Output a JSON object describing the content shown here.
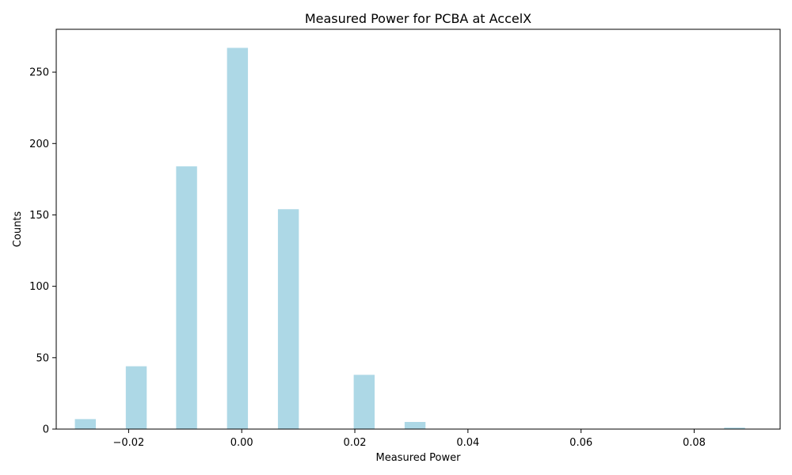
{
  "chart_data": {
    "type": "bar",
    "title": "Measured Power for PCBA at AccelX",
    "xlabel": "Measured Power",
    "ylabel": "Counts",
    "xlim": [
      -0.0328,
      0.0952
    ],
    "ylim": [
      0,
      280
    ],
    "xticks": [
      -0.02,
      0.0,
      0.02,
      0.04,
      0.06,
      0.08
    ],
    "xtick_labels": [
      "−0.02",
      "0.00",
      "0.02",
      "0.04",
      "0.06",
      "0.08"
    ],
    "yticks": [
      0,
      50,
      100,
      150,
      200,
      250
    ],
    "ytick_labels": [
      "0",
      "50",
      "100",
      "150",
      "200",
      "250"
    ],
    "grid": false,
    "bar_color": "#add8e6",
    "bins": [
      {
        "x0": -0.0295,
        "x1": -0.0258,
        "count": 7
      },
      {
        "x0": -0.0205,
        "x1": -0.0168,
        "count": 44
      },
      {
        "x0": -0.0116,
        "x1": -0.0079,
        "count": 184
      },
      {
        "x0": -0.0026,
        "x1": 0.0011,
        "count": 267
      },
      {
        "x0": 0.0064,
        "x1": 0.0101,
        "count": 154
      },
      {
        "x0": 0.0198,
        "x1": 0.0235,
        "count": 38
      },
      {
        "x0": 0.0288,
        "x1": 0.0325,
        "count": 5
      },
      {
        "x0": 0.0853,
        "x1": 0.089,
        "count": 1
      }
    ]
  }
}
